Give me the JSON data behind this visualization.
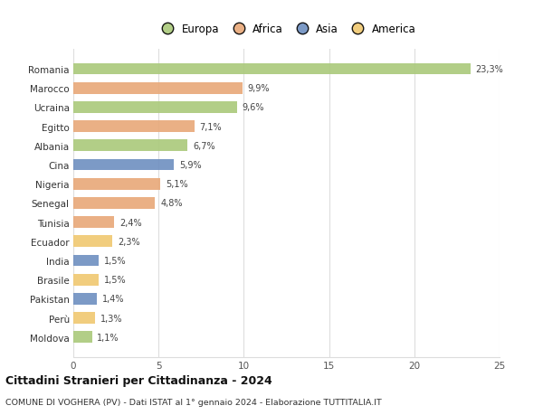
{
  "countries": [
    "Romania",
    "Marocco",
    "Ucraina",
    "Egitto",
    "Albania",
    "Cina",
    "Nigeria",
    "Senegal",
    "Tunisia",
    "Ecuador",
    "India",
    "Brasile",
    "Pakistan",
    "Perù",
    "Moldova"
  ],
  "values": [
    23.3,
    9.9,
    9.6,
    7.1,
    6.7,
    5.9,
    5.1,
    4.8,
    2.4,
    2.3,
    1.5,
    1.5,
    1.4,
    1.3,
    1.1
  ],
  "labels": [
    "23,3%",
    "9,9%",
    "9,6%",
    "7,1%",
    "6,7%",
    "5,9%",
    "5,1%",
    "4,8%",
    "2,4%",
    "2,3%",
    "1,5%",
    "1,5%",
    "1,4%",
    "1,3%",
    "1,1%"
  ],
  "continents": [
    "Europa",
    "Africa",
    "Europa",
    "Africa",
    "Europa",
    "Asia",
    "Africa",
    "Africa",
    "Africa",
    "America",
    "Asia",
    "America",
    "Asia",
    "America",
    "Europa"
  ],
  "colors": {
    "Europa": "#aac97a",
    "Africa": "#e8a878",
    "Asia": "#6e8fc0",
    "America": "#f0c870"
  },
  "xlim": [
    0,
    25
  ],
  "xticks": [
    0,
    5,
    10,
    15,
    20,
    25
  ],
  "title": "Cittadini Stranieri per Cittadinanza - 2024",
  "subtitle": "COMUNE DI VOGHERA (PV) - Dati ISTAT al 1° gennaio 2024 - Elaborazione TUTTITALIA.IT",
  "background_color": "#ffffff",
  "grid_color": "#dddddd",
  "bar_height": 0.6,
  "legend_order": [
    "Europa",
    "Africa",
    "Asia",
    "America"
  ]
}
